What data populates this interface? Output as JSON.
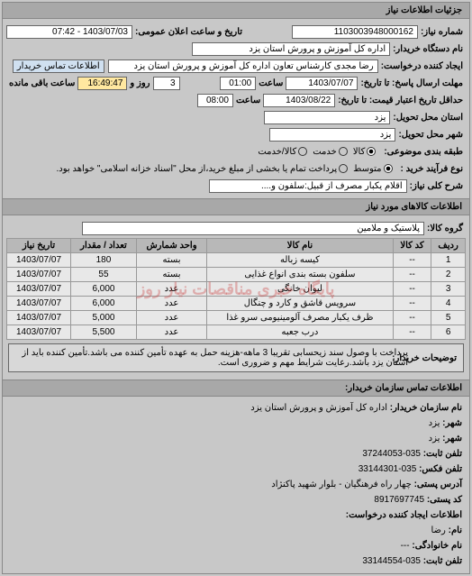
{
  "colors": {
    "bg": "#c8c8c8",
    "headerBg": "#a8a8a8",
    "fieldBg": "#ffffff",
    "tableHeaderBg": "#b8b8b8",
    "tableCellBg": "#e8e8e8",
    "watermark": "rgba(200,60,60,0.35)"
  },
  "header": {
    "title": "جزئیات اطلاعات نیاز"
  },
  "main": {
    "reqNoLabel": "شماره نیاز:",
    "reqNo": "1103003948000162",
    "announceLabel": "تاریخ و ساعت اعلان عمومی:",
    "announceDate": "1403/07/03 - 07:42",
    "buyerLabel": "نام دستگاه خریدار:",
    "buyer": "اداره کل آموزش و پرورش استان یزد",
    "requesterLabel": "ایجاد کننده درخواست:",
    "requester": "رضا مجدی کارشناس تعاون اداره کل آموزش و پرورش استان یزد",
    "contactBtn": "اطلاعات تماس خریدار",
    "deadlineLabel": "مهلت ارسال پاسخ: تا تاریخ:",
    "deadlineDate": "1403/07/07",
    "timeLabel": "ساعت",
    "deadlineTime": "01:00",
    "daysLabel": "روز و",
    "days": "3",
    "remain": "16:49:47",
    "remainLabel": "ساعت باقی مانده",
    "minValidLabel": "حداقل تاریخ اعتبار قیمت: تا تاریخ:",
    "minValidDate": "1403/08/22",
    "minValidTime": "08:00",
    "deliverProvLabel": "استان محل تحویل:",
    "deliverProv": "یزد",
    "deliverCityLabel": "شهر محل تحویل:",
    "deliverCity": "یزد",
    "catLabel": "طبقه بندی موضوعی:",
    "catOptions": {
      "a": "کالا",
      "b": "خدمت",
      "c": "کالا/خدمت"
    },
    "procLabel": "نوع فرآیند خرید :",
    "procOptions": {
      "a": "متوسط",
      "b": "پرداخت تمام یا بخشی از مبلغ خرید،از محل \"اسناد خزانه اسلامی\" خواهد بود."
    },
    "descLabel": "شرح کلی نیاز:",
    "desc": "اقلام یکبار مصرف از قبیل:سلفون و...."
  },
  "goodsHeader": "اطلاعات کالاهای مورد نیاز",
  "goodsGroupLabel": "گروه کالا:",
  "goodsGroup": "پلاستیک و ملامین",
  "table": {
    "columns": [
      "ردیف",
      "کد کالا",
      "نام کالا",
      "واحد شمارش",
      "تعداد / مقدار",
      "تاریخ نیاز"
    ],
    "rows": [
      [
        "1",
        "--",
        "کیسه زباله",
        "بسته",
        "180",
        "1403/07/07"
      ],
      [
        "2",
        "--",
        "سلفون بسته بندی انواع غذایی",
        "بسته",
        "55",
        "1403/07/07"
      ],
      [
        "3",
        "--",
        "لیوان خانگی",
        "عدد",
        "6,000",
        "1403/07/07"
      ],
      [
        "4",
        "--",
        "سرویس قاشق و کارد و چنگال",
        "عدد",
        "6,000",
        "1403/07/07"
      ],
      [
        "5",
        "--",
        "ظرف یکبار مصرف آلومینیومی سرو غذا",
        "عدد",
        "5,000",
        "1403/07/07"
      ],
      [
        "6",
        "--",
        "درب جعبه",
        "عدد",
        "5,500",
        "1403/07/07"
      ]
    ],
    "watermark": "پایگاه خبری مناقصات نیاز روز"
  },
  "buyerNoteLabel": "توضیحات خریدار:",
  "buyerNote": "پرداخت با وصول سند زیحسابی تقریبا 3 ماهه-هزینه حمل به عهده تأمین کننده می باشد.تأمین کننده باید از استان یزد باشد.رعایت شرایط مهم و ضروری است.",
  "contactHeader": "اطلاعات تماس سازمان خریدار:",
  "contact": {
    "orgLabel": "نام سازمان خریدار:",
    "org": "اداره کل آموزش و پرورش استان یزد",
    "cityLabel": "شهر:",
    "city": "یزد",
    "townLabel": "شهر:",
    "town": "یزد",
    "phoneLabel": "تلفن ثابت:",
    "phone": "035-37244053",
    "faxLabel": "تلفن فکس:",
    "fax": "035-33144301",
    "addrLabel": "آدرس پستی:",
    "addr": "چهار راه فرهنگیان - بلوار شهید پاکنژاد",
    "postLabel": "کد پستی:",
    "post": "8917697745",
    "creatorHeader": "اطلاعات ایجاد کننده درخواست:",
    "nameLabel": "نام:",
    "name": "رضا",
    "familyLabel": "نام خانوادگی:",
    "family": "---",
    "cPhoneLabel": "تلفن ثابت:",
    "cPhone": "035-33144554"
  }
}
